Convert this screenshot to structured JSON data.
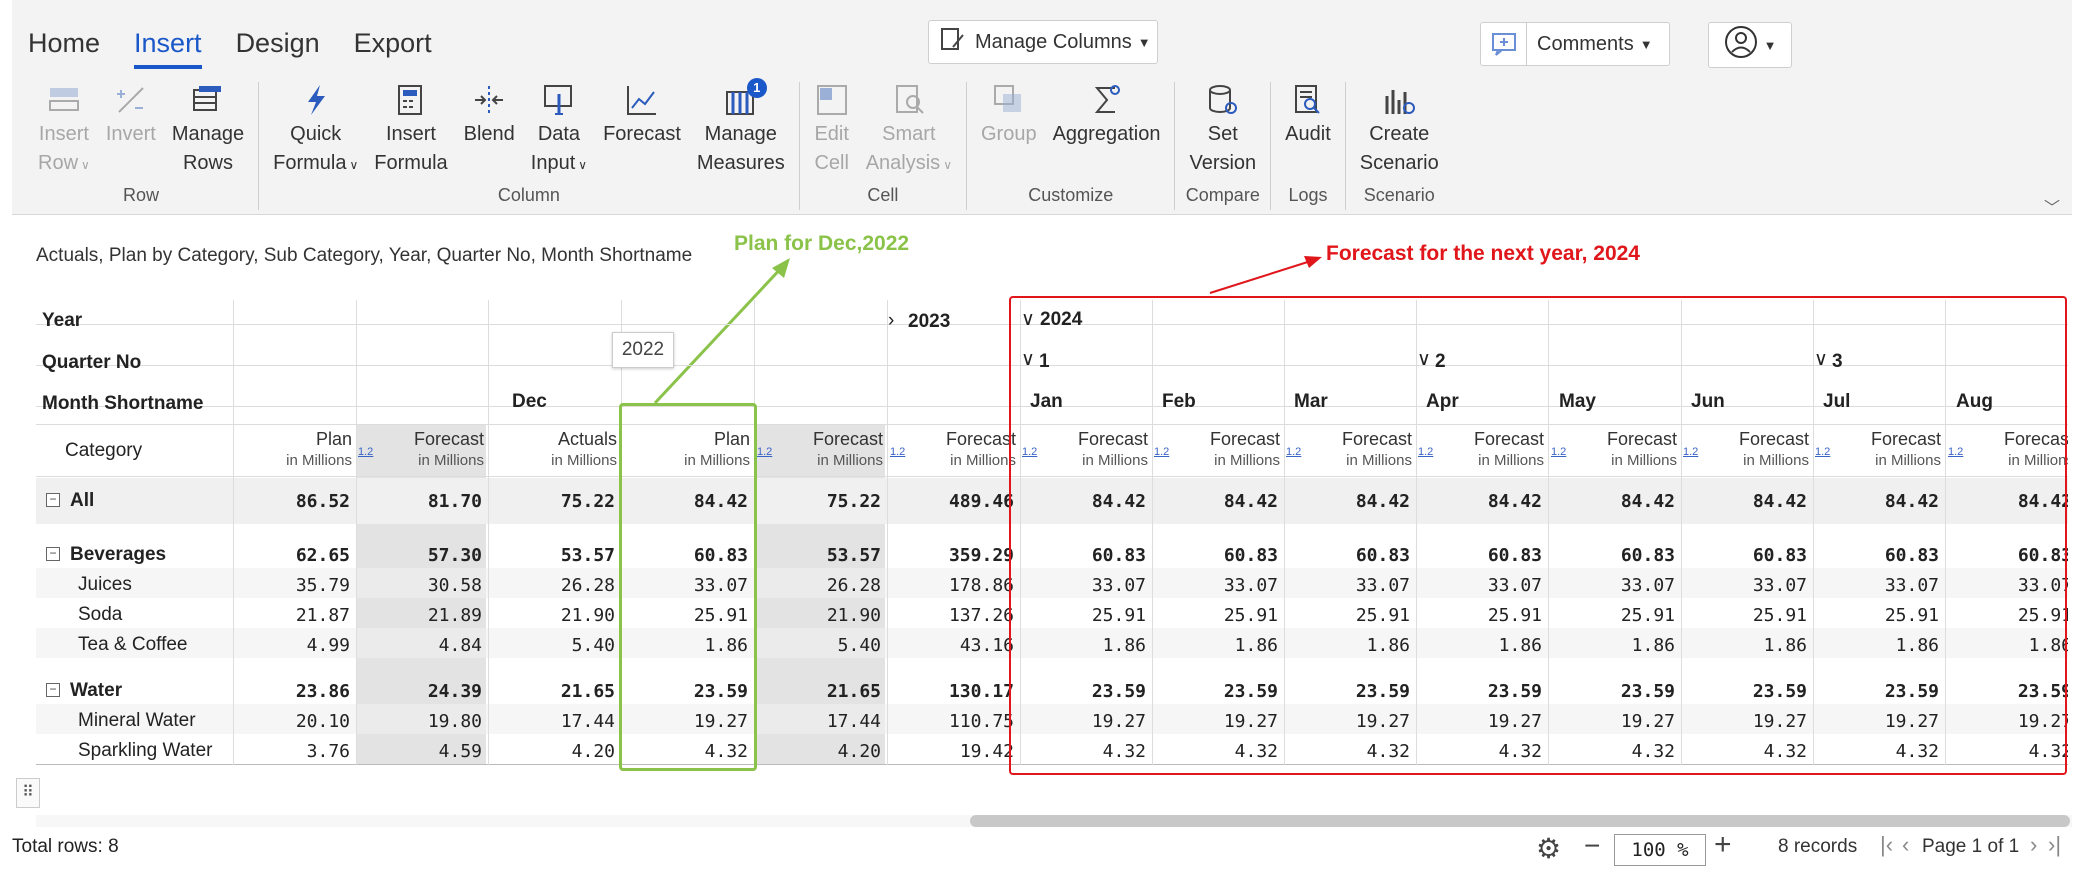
{
  "menu": {
    "tabs": [
      "Home",
      "Insert",
      "Design",
      "Export"
    ],
    "active": "Insert"
  },
  "top_buttons": {
    "manage_columns": "Manage Columns",
    "comments": "Comments"
  },
  "ribbon": {
    "groups": [
      {
        "label": "Row",
        "buttons": [
          {
            "l1": "Insert",
            "l2": "Row",
            "caret": true,
            "disabled": true,
            "icon": "insert-row-icon"
          },
          {
            "l1": "Invert",
            "l2": "",
            "caret": false,
            "disabled": true,
            "icon": "invert-icon"
          },
          {
            "l1": "Manage",
            "l2": "Rows",
            "caret": false,
            "disabled": false,
            "icon": "manage-rows-icon"
          }
        ]
      },
      {
        "label": "Column",
        "buttons": [
          {
            "l1": "Quick",
            "l2": "Formula",
            "caret": true,
            "disabled": false,
            "icon": "quick-formula-icon"
          },
          {
            "l1": "Insert",
            "l2": "Formula",
            "caret": false,
            "disabled": false,
            "icon": "insert-formula-icon"
          },
          {
            "l1": "Blend",
            "l2": "",
            "caret": false,
            "disabled": false,
            "icon": "blend-icon"
          },
          {
            "l1": "Data",
            "l2": "Input",
            "caret": true,
            "disabled": false,
            "icon": "data-input-icon"
          },
          {
            "l1": "Forecast",
            "l2": "",
            "caret": false,
            "disabled": false,
            "icon": "forecast-icon"
          },
          {
            "l1": "Manage",
            "l2": "Measures",
            "caret": false,
            "disabled": false,
            "icon": "manage-measures-icon",
            "badge": "1"
          }
        ]
      },
      {
        "label": "Cell",
        "buttons": [
          {
            "l1": "Edit",
            "l2": "Cell",
            "caret": false,
            "disabled": true,
            "icon": "edit-cell-icon"
          },
          {
            "l1": "Smart",
            "l2": "Analysis",
            "caret": true,
            "disabled": true,
            "icon": "smart-analysis-icon"
          }
        ]
      },
      {
        "label": "Customize",
        "buttons": [
          {
            "l1": "Group",
            "l2": "",
            "caret": false,
            "disabled": true,
            "icon": "group-icon"
          },
          {
            "l1": "Aggregation",
            "l2": "",
            "caret": false,
            "disabled": false,
            "icon": "aggregation-icon"
          }
        ]
      },
      {
        "label": "Compare",
        "buttons": [
          {
            "l1": "Set",
            "l2": "Version",
            "caret": false,
            "disabled": false,
            "icon": "set-version-icon"
          }
        ]
      },
      {
        "label": "Logs",
        "buttons": [
          {
            "l1": "Audit",
            "l2": "",
            "caret": false,
            "disabled": false,
            "icon": "audit-icon"
          }
        ]
      },
      {
        "label": "Scenario",
        "buttons": [
          {
            "l1": "Create",
            "l2": "Scenario",
            "caret": false,
            "disabled": false,
            "icon": "create-scenario-icon"
          }
        ]
      }
    ]
  },
  "report": {
    "title": "Actuals, Plan by Category, Sub Category, Year, Quarter No, Month Shortname",
    "annotations": {
      "plan": "Plan for Dec,2022",
      "forecast": "Forecast  for the next year, 2024"
    },
    "tooltip": "2022",
    "header_labels": {
      "year": "Year",
      "quarter": "Quarter No",
      "month": "Month Shortname",
      "category": "Category"
    },
    "years": [
      "2023",
      "2024"
    ],
    "quarters": [
      "1",
      "2",
      "3"
    ],
    "left_month": "Dec",
    "unit": "in Millions",
    "hint": "1.2",
    "left_columns": [
      "Plan",
      "Forecast",
      "Actuals",
      "Plan",
      "Forecast",
      "Forecast"
    ],
    "months_2024": [
      "Jan",
      "Feb",
      "Mar",
      "Apr",
      "May",
      "Jun",
      "Jul",
      "Aug"
    ],
    "month_measure": "Forecast",
    "rows": [
      {
        "label": "All",
        "level": 0,
        "bold": true,
        "expander": "−",
        "left": [
          "86.52",
          "81.70",
          "75.22",
          "84.42",
          "75.22",
          "489.46"
        ],
        "fc": "84.42"
      },
      {
        "label": "Beverages",
        "level": 0,
        "bold": true,
        "expander": "−",
        "left": [
          "62.65",
          "57.30",
          "53.57",
          "60.83",
          "53.57",
          "359.29"
        ],
        "fc": "60.83"
      },
      {
        "label": "Juices",
        "level": 1,
        "bold": false,
        "expander": "",
        "left": [
          "35.79",
          "30.58",
          "26.28",
          "33.07",
          "26.28",
          "178.86"
        ],
        "fc": "33.07"
      },
      {
        "label": "Soda",
        "level": 1,
        "bold": false,
        "expander": "",
        "left": [
          "21.87",
          "21.89",
          "21.90",
          "25.91",
          "21.90",
          "137.26"
        ],
        "fc": "25.91"
      },
      {
        "label": "Tea & Coffee",
        "level": 1,
        "bold": false,
        "expander": "",
        "left": [
          "4.99",
          "4.84",
          "5.40",
          "1.86",
          "5.40",
          "43.16"
        ],
        "fc": "1.86"
      },
      {
        "label": "Water",
        "level": 0,
        "bold": true,
        "expander": "−",
        "left": [
          "23.86",
          "24.39",
          "21.65",
          "23.59",
          "21.65",
          "130.17"
        ],
        "fc": "23.59"
      },
      {
        "label": "Mineral Water",
        "level": 1,
        "bold": false,
        "expander": "",
        "left": [
          "20.10",
          "19.80",
          "17.44",
          "19.27",
          "17.44",
          "110.75"
        ],
        "fc": "19.27"
      },
      {
        "label": "Sparkling Water",
        "level": 1,
        "bold": false,
        "expander": "",
        "left": [
          "3.76",
          "4.59",
          "4.20",
          "4.32",
          "4.20",
          "19.42"
        ],
        "fc": "4.32"
      }
    ]
  },
  "footer": {
    "total_rows": "Total rows: 8",
    "zoom": "100 %",
    "records": "8 records",
    "page": "Page 1 of 1"
  },
  "colors": {
    "accent": "#1a57c8",
    "green_highlight": "#8bc34a",
    "red_highlight": "#e0161b",
    "shaded_column": "#e3e3e3"
  }
}
